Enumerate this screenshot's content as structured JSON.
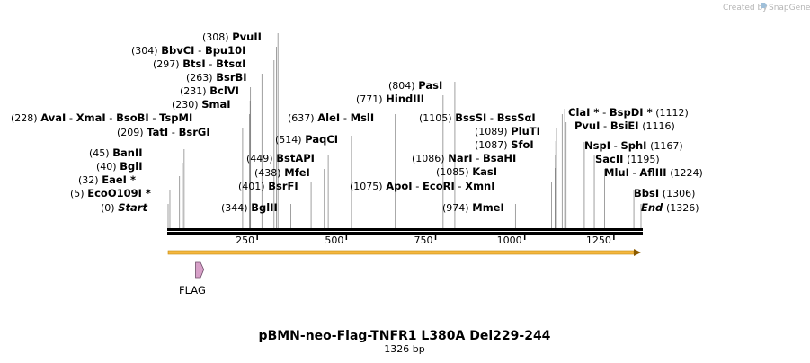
{
  "watermark": "Created by",
  "watermark_brand": "SnapGene",
  "title": "pBMN-neo-Flag-TNFR1 L380A Del229-244",
  "subtitle": "1326 bp",
  "total_bp": 1326,
  "ruler_ticks": [
    "250",
    "500",
    "750",
    "1000",
    "1250"
  ],
  "feature": {
    "name": "FLAG",
    "start": 77,
    "end": 100,
    "color": "#d7a0c8"
  },
  "orf_arrow_color": "#f5b740",
  "sites": [
    {
      "pos_label": "(0)",
      "names": [
        "Start"
      ],
      "italic": true,
      "pos": 0
    },
    {
      "pos_label": "(5)",
      "names": [
        "EcoO109I *"
      ],
      "pos": 5
    },
    {
      "pos_label": "(32)",
      "names": [
        "EaeI *"
      ],
      "pos": 32
    },
    {
      "pos_label": "(40)",
      "names": [
        "BglI"
      ],
      "pos": 40
    },
    {
      "pos_label": "(45)",
      "names": [
        "BanII"
      ],
      "pos": 45
    },
    {
      "pos_label": "(209)",
      "names": [
        "TatI",
        "BsrGI"
      ],
      "pos": 209
    },
    {
      "pos_label": "(228)",
      "names": [
        "AvaI",
        "XmaI",
        "BsoBI",
        "TspMI"
      ],
      "pos": 228
    },
    {
      "pos_label": "(230)",
      "names": [
        "SmaI"
      ],
      "pos": 230
    },
    {
      "pos_label": "(231)",
      "names": [
        "BclVI"
      ],
      "pos": 231
    },
    {
      "pos_label": "(263)",
      "names": [
        "BsrBI"
      ],
      "pos": 263
    },
    {
      "pos_label": "(297)",
      "names": [
        "BtsI",
        "BtsαI"
      ],
      "pos": 297
    },
    {
      "pos_label": "(304)",
      "names": [
        "BbvCI",
        "Bpu10I"
      ],
      "pos": 304
    },
    {
      "pos_label": "(308)",
      "names": [
        "PvuII"
      ],
      "pos": 308
    },
    {
      "pos_label": "(344)",
      "names": [
        "BglII"
      ],
      "pos": 344
    },
    {
      "pos_label": "(401)",
      "names": [
        "BsrFI"
      ],
      "pos": 401
    },
    {
      "pos_label": "(438)",
      "names": [
        "MfeI"
      ],
      "pos": 438
    },
    {
      "pos_label": "(449)",
      "names": [
        "BstAPI"
      ],
      "pos": 449
    },
    {
      "pos_label": "(514)",
      "names": [
        "PaqCI"
      ],
      "pos": 514
    },
    {
      "pos_label": "(637)",
      "names": [
        "AleI",
        "MslI"
      ],
      "pos": 637
    },
    {
      "pos_label": "(771)",
      "names": [
        "HindIII"
      ],
      "pos": 771
    },
    {
      "pos_label": "(804)",
      "names": [
        "PasI"
      ],
      "pos": 804
    },
    {
      "pos_label": "(974)",
      "names": [
        "MmeI"
      ],
      "pos": 974
    },
    {
      "pos_label": "(1075)",
      "names": [
        "ApoI",
        "EcoRI",
        "XmnI"
      ],
      "pos": 1075
    },
    {
      "pos_label": "(1085)",
      "names": [
        "KasI"
      ],
      "pos": 1085
    },
    {
      "pos_label": "(1086)",
      "names": [
        "NarI",
        "BsaHI"
      ],
      "pos": 1086
    },
    {
      "pos_label": "(1087)",
      "names": [
        "SfoI"
      ],
      "pos": 1087
    },
    {
      "pos_label": "(1089)",
      "names": [
        "PluTI"
      ],
      "pos": 1089
    },
    {
      "pos_label": "(1105)",
      "names": [
        "BssSI",
        "BssSαI"
      ],
      "pos": 1105
    },
    {
      "pos_label": "(1112)",
      "names": [
        "ClaI *",
        "BspDI *"
      ],
      "pos": 1112
    },
    {
      "pos_label": "(1116)",
      "names": [
        "PvuI",
        "BsiEI"
      ],
      "pos": 1116
    },
    {
      "pos_label": "(1167)",
      "names": [
        "NspI",
        "SphI"
      ],
      "pos": 1167
    },
    {
      "pos_label": "(1195)",
      "names": [
        "SacII"
      ],
      "pos": 1195
    },
    {
      "pos_label": "(1224)",
      "names": [
        "MluI",
        "AflIII"
      ],
      "pos": 1224
    },
    {
      "pos_label": "(1306)",
      "names": [
        "BbsI"
      ],
      "pos": 1306
    },
    {
      "pos_label": "(1326)",
      "names": [
        "End"
      ],
      "italic": true,
      "pos": 1326
    }
  ]
}
